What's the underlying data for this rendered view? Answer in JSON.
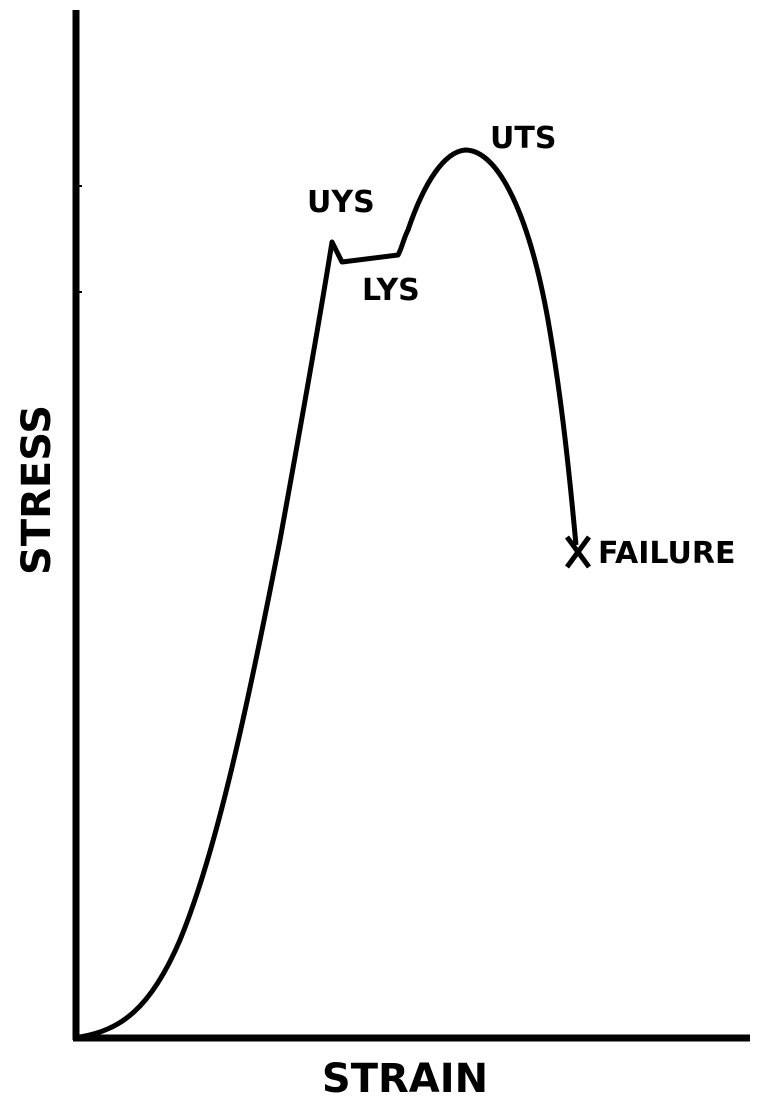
{
  "axes": {
    "y_label": "STRESS",
    "x_label": "STRAIN"
  },
  "annotations": {
    "upper_yield": "UYS",
    "lower_yield": "LYS",
    "ultimate": "UTS",
    "failure": "FAILURE"
  }
}
